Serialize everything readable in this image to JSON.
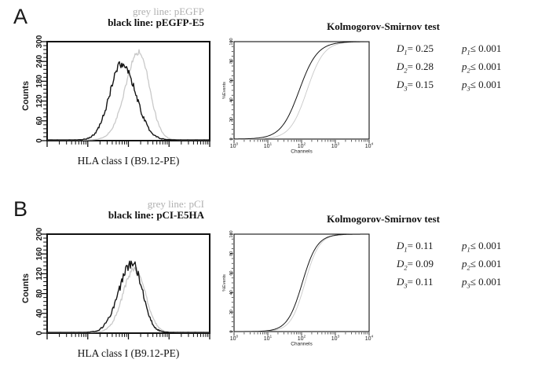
{
  "colors": {
    "black": "#151515",
    "grey_curve": "#c9c9c9",
    "grey_text": "#b0b0b0"
  },
  "panels": [
    {
      "label": "A",
      "legend": {
        "grey_label": "grey line: pEGFP",
        "black_label": "black line: pEGFP-E5"
      },
      "histogram": {
        "xlabel": "HLA class I (B9.12-PE)"
      },
      "ks": {
        "title": "Kolmogorov-Smirnov test"
      },
      "stats": [
        {
          "d_sym": "D",
          "d_sub": "1",
          "d_val": "= 0.25",
          "p_sym": "p",
          "p_sub": "1",
          "p_val": "≤ 0.001"
        },
        {
          "d_sym": "D",
          "d_sub": "2",
          "d_val": "= 0.28",
          "p_sym": "p",
          "p_sub": "2",
          "p_val": "≤ 0.001"
        },
        {
          "d_sym": "D",
          "d_sub": "3",
          "d_val": "= 0.15",
          "p_sym": "p",
          "p_sub": "3",
          "p_val": "≤ 0.001"
        }
      ]
    },
    {
      "label": "B",
      "legend": {
        "grey_label": "grey line: pCI",
        "black_label": "black line: pCI-E5HA"
      },
      "histogram": {
        "xlabel": "HLA class I (B9.12-PE)"
      },
      "ks": {
        "title": "Kolmogorov-Smirnov test"
      },
      "stats": [
        {
          "d_sym": "D",
          "d_sub": "1",
          "d_val": "= 0.11",
          "p_sym": "p",
          "p_sub": "1",
          "p_val": "≤ 0.001"
        },
        {
          "d_sym": "D",
          "d_sub": "2",
          "d_val": "= 0.09",
          "p_sym": "p",
          "p_sub": "2",
          "p_val": "≤ 0.001"
        },
        {
          "d_sym": "D",
          "d_sub": "3",
          "d_val": "= 0.11",
          "p_sym": "p",
          "p_sub": "3",
          "p_val": "≤ 0.001"
        }
      ]
    }
  ],
  "chart_data": [
    {
      "panel": "A",
      "type": "area",
      "subtype": "flow-cytometry-histogram-overlay",
      "xlabel": "HLA class I (B9.12-PE)",
      "ylabel": "Counts",
      "x_scale": "log10",
      "x_decades": [
        0,
        4
      ],
      "ylim": [
        0,
        300
      ],
      "yticks": [
        0,
        60,
        120,
        180,
        240,
        300
      ],
      "y_minor_step": 12,
      "grid": false,
      "series": [
        {
          "name": "pEGFP",
          "line": "grey",
          "peak_log10_channel": 2.26,
          "peak_counts": 268,
          "sigma_left_decades": 0.33,
          "sigma_right_decades": 0.26,
          "jitter_counts": 8,
          "seed": 11
        },
        {
          "name": "pEGFP-E5",
          "line": "black",
          "peak_log10_channel": 1.84,
          "peak_counts": 232,
          "sigma_left_decades": 0.3,
          "sigma_right_decades": 0.34,
          "jitter_counts": 13,
          "seed": 3
        }
      ]
    },
    {
      "panel": "A",
      "type": "line",
      "subtype": "cumulative-distribution (Kolmogorov-Smirnov)",
      "title": "Kolmogorov-Smirnov test",
      "xlabel": "Channels",
      "ylabel": "%Events",
      "x_scale": "log10",
      "x_decades": [
        0,
        4
      ],
      "xtick_base": "10",
      "xtick_exponents": [
        "0",
        "1",
        "2",
        "3",
        "4"
      ],
      "ylim": [
        0,
        100
      ],
      "yticks": [
        0,
        20,
        40,
        60,
        80,
        100
      ],
      "y_minor_step": 5,
      "grid": false,
      "series": [
        {
          "name": "pEGFP",
          "line": "grey",
          "mid_log10_channel": 2.16,
          "slope_decades": 0.25
        },
        {
          "name": "pEGFP-E5",
          "line": "black",
          "mid_log10_channel": 1.93,
          "slope_decades": 0.27
        }
      ],
      "statistics": {
        "D1": 0.25,
        "D2": 0.28,
        "D3": 0.15,
        "p1": "≤ 0.001",
        "p2": "≤ 0.001",
        "p3": "≤ 0.001"
      }
    },
    {
      "panel": "B",
      "type": "area",
      "subtype": "flow-cytometry-histogram-overlay",
      "xlabel": "HLA class I (B9.12-PE)",
      "ylabel": "Counts",
      "x_scale": "log10",
      "x_decades": [
        0,
        4
      ],
      "ylim": [
        0,
        200
      ],
      "yticks": [
        0,
        40,
        80,
        120,
        160,
        200
      ],
      "y_minor_step": 8,
      "grid": false,
      "series": [
        {
          "name": "pCI",
          "line": "grey",
          "peak_log10_channel": 2.16,
          "peak_counts": 131,
          "sigma_left_decades": 0.29,
          "sigma_right_decades": 0.26,
          "jitter_counts": 6,
          "seed": 13
        },
        {
          "name": "pCI-E5HA",
          "line": "black",
          "peak_log10_channel": 2.09,
          "peak_counts": 141,
          "sigma_left_decades": 0.32,
          "sigma_right_decades": 0.25,
          "jitter_counts": 9,
          "seed": 5
        }
      ]
    },
    {
      "panel": "B",
      "type": "line",
      "subtype": "cumulative-distribution (Kolmogorov-Smirnov)",
      "title": "Kolmogorov-Smirnov test",
      "xlabel": "Channels",
      "ylabel": "%Events",
      "x_scale": "log10",
      "x_decades": [
        0,
        4
      ],
      "xtick_base": "10",
      "xtick_exponents": [
        "0",
        "1",
        "2",
        "3",
        "4"
      ],
      "ylim": [
        0,
        100
      ],
      "yticks": [
        0,
        20,
        40,
        60,
        80,
        100
      ],
      "y_minor_step": 5,
      "grid": false,
      "series": [
        {
          "name": "pCI",
          "line": "grey",
          "mid_log10_channel": 2.1,
          "slope_decades": 0.21
        },
        {
          "name": "pCI-E5HA",
          "line": "black",
          "mid_log10_channel": 2.02,
          "slope_decades": 0.22
        }
      ],
      "statistics": {
        "D1": 0.11,
        "D2": 0.09,
        "D3": 0.11,
        "p1": "≤ 0.001",
        "p2": "≤ 0.001",
        "p3": "≤ 0.001"
      }
    }
  ]
}
